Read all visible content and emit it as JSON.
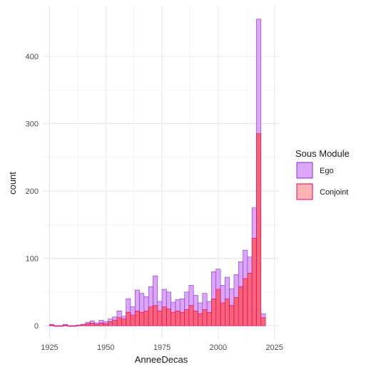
{
  "chart_data": {
    "type": "bar",
    "subtype": "overlaid-histogram",
    "xlabel": "AnneeDecas",
    "ylabel": "count",
    "xlim": [
      1922,
      2027
    ],
    "ylim": [
      -20,
      475
    ],
    "x_ticks": [
      1925,
      1950,
      1975,
      2000,
      2025
    ],
    "y_ticks": [
      0,
      100,
      200,
      300,
      400
    ],
    "bin_width": 2,
    "legend": {
      "title": "Sous Module",
      "position": "right"
    },
    "grid": true,
    "series": [
      {
        "name": "Ego",
        "fill": "#dba6f5",
        "stroke": "#8a2be2",
        "bins": [
          {
            "x": 1926,
            "y": 2
          },
          {
            "x": 1928,
            "y": 0
          },
          {
            "x": 1930,
            "y": 0
          },
          {
            "x": 1932,
            "y": 2
          },
          {
            "x": 1934,
            "y": 0
          },
          {
            "x": 1936,
            "y": 0
          },
          {
            "x": 1938,
            "y": 1
          },
          {
            "x": 1940,
            "y": 2
          },
          {
            "x": 1942,
            "y": 5
          },
          {
            "x": 1944,
            "y": 7
          },
          {
            "x": 1946,
            "y": 4
          },
          {
            "x": 1948,
            "y": 8
          },
          {
            "x": 1950,
            "y": 6
          },
          {
            "x": 1952,
            "y": 10
          },
          {
            "x": 1954,
            "y": 13
          },
          {
            "x": 1956,
            "y": 22
          },
          {
            "x": 1958,
            "y": 14
          },
          {
            "x": 1960,
            "y": 40
          },
          {
            "x": 1962,
            "y": 28
          },
          {
            "x": 1964,
            "y": 53
          },
          {
            "x": 1966,
            "y": 48
          },
          {
            "x": 1968,
            "y": 43
          },
          {
            "x": 1970,
            "y": 58
          },
          {
            "x": 1972,
            "y": 74
          },
          {
            "x": 1974,
            "y": 36
          },
          {
            "x": 1976,
            "y": 54
          },
          {
            "x": 1978,
            "y": 50
          },
          {
            "x": 1980,
            "y": 35
          },
          {
            "x": 1982,
            "y": 39
          },
          {
            "x": 1984,
            "y": 40
          },
          {
            "x": 1986,
            "y": 50
          },
          {
            "x": 1988,
            "y": 60
          },
          {
            "x": 1990,
            "y": 45
          },
          {
            "x": 1992,
            "y": 34
          },
          {
            "x": 1994,
            "y": 48
          },
          {
            "x": 1996,
            "y": 36
          },
          {
            "x": 1998,
            "y": 80
          },
          {
            "x": 2000,
            "y": 84
          },
          {
            "x": 2002,
            "y": 60
          },
          {
            "x": 2004,
            "y": 72
          },
          {
            "x": 2006,
            "y": 55
          },
          {
            "x": 2008,
            "y": 76
          },
          {
            "x": 2010,
            "y": 95
          },
          {
            "x": 2012,
            "y": 112
          },
          {
            "x": 2014,
            "y": 102
          },
          {
            "x": 2016,
            "y": 175
          },
          {
            "x": 2018,
            "y": 455
          },
          {
            "x": 2020,
            "y": 18
          }
        ]
      },
      {
        "name": "Conjoint",
        "fill": "#ff4d4d",
        "stroke": "#e0006e",
        "bins": [
          {
            "x": 1926,
            "y": 1
          },
          {
            "x": 1928,
            "y": 0
          },
          {
            "x": 1930,
            "y": 0
          },
          {
            "x": 1932,
            "y": 1
          },
          {
            "x": 1934,
            "y": 0
          },
          {
            "x": 1936,
            "y": 0
          },
          {
            "x": 1938,
            "y": 1
          },
          {
            "x": 1940,
            "y": 2
          },
          {
            "x": 1942,
            "y": 3
          },
          {
            "x": 1944,
            "y": 4
          },
          {
            "x": 1946,
            "y": 2
          },
          {
            "x": 1948,
            "y": 4
          },
          {
            "x": 1950,
            "y": 3
          },
          {
            "x": 1952,
            "y": 6
          },
          {
            "x": 1954,
            "y": 8
          },
          {
            "x": 1956,
            "y": 12
          },
          {
            "x": 1958,
            "y": 10
          },
          {
            "x": 1960,
            "y": 20
          },
          {
            "x": 1962,
            "y": 16
          },
          {
            "x": 1964,
            "y": 22
          },
          {
            "x": 1966,
            "y": 20
          },
          {
            "x": 1968,
            "y": 22
          },
          {
            "x": 1970,
            "y": 28
          },
          {
            "x": 1972,
            "y": 30
          },
          {
            "x": 1974,
            "y": 22
          },
          {
            "x": 1976,
            "y": 28
          },
          {
            "x": 1978,
            "y": 25
          },
          {
            "x": 1980,
            "y": 20
          },
          {
            "x": 1982,
            "y": 22
          },
          {
            "x": 1984,
            "y": 20
          },
          {
            "x": 1986,
            "y": 24
          },
          {
            "x": 1988,
            "y": 30
          },
          {
            "x": 1990,
            "y": 22
          },
          {
            "x": 1992,
            "y": 18
          },
          {
            "x": 1994,
            "y": 24
          },
          {
            "x": 1996,
            "y": 20
          },
          {
            "x": 1998,
            "y": 40
          },
          {
            "x": 2000,
            "y": 54
          },
          {
            "x": 2002,
            "y": 34
          },
          {
            "x": 2004,
            "y": 40
          },
          {
            "x": 2006,
            "y": 30
          },
          {
            "x": 2008,
            "y": 42
          },
          {
            "x": 2010,
            "y": 58
          },
          {
            "x": 2012,
            "y": 70
          },
          {
            "x": 2014,
            "y": 78
          },
          {
            "x": 2016,
            "y": 130
          },
          {
            "x": 2018,
            "y": 285
          },
          {
            "x": 2020,
            "y": 12
          }
        ]
      }
    ]
  }
}
